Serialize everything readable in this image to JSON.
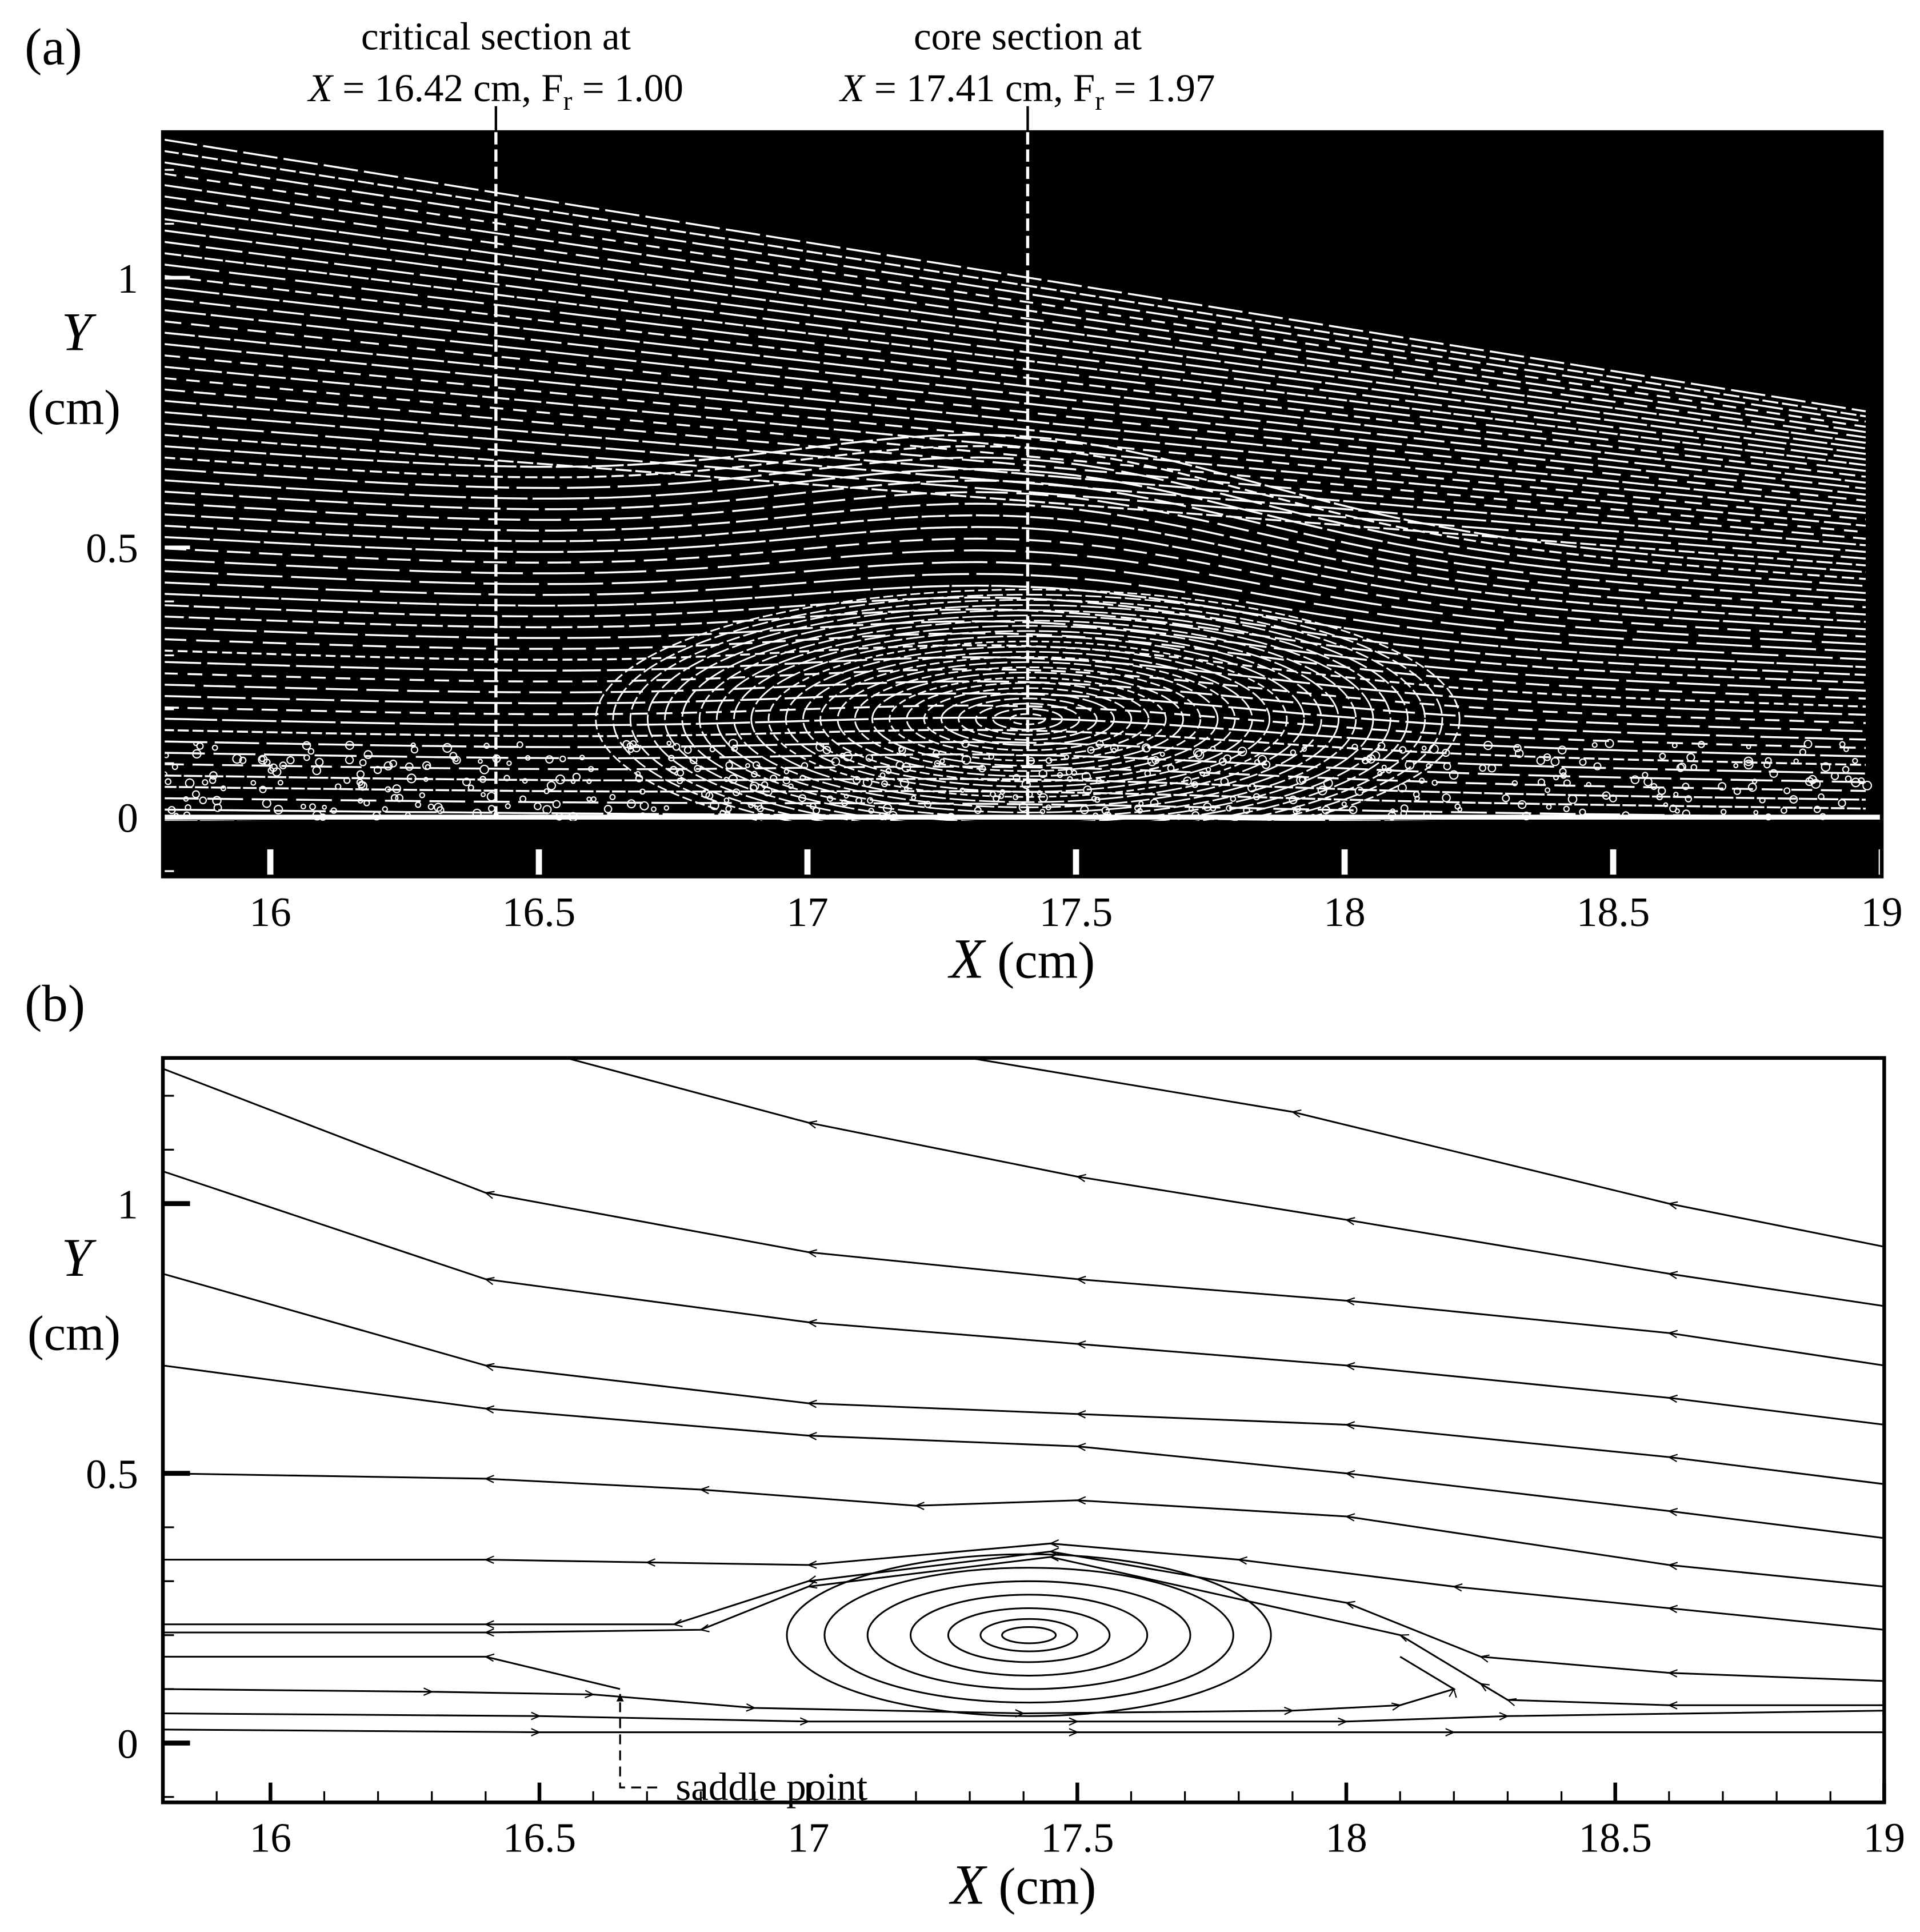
{
  "chart_data": [
    {
      "type": "image",
      "panel_label": "(a)",
      "xlim": [
        15.8,
        19
      ],
      "ylim": [
        -0.11,
        1.27
      ],
      "xticks": [
        16,
        16.5,
        17,
        17.5,
        18,
        18.5,
        19
      ],
      "yticks": [
        0,
        0.5,
        1
      ],
      "xlabel": {
        "var": "X",
        "unit": " (cm)"
      },
      "ylabel": {
        "var": "Y",
        "unit": "(cm)"
      },
      "sections": [
        {
          "title": "critical section at",
          "parts": [
            "X",
            " = 16.42 cm, F",
            "r",
            " = 1.00"
          ],
          "x": 16.42
        },
        {
          "title": "core section at",
          "parts": [
            "X",
            " = 17.41 cm, F",
            "r",
            " = 1.97"
          ],
          "x": 17.41
        }
      ]
    },
    {
      "type": "streamline",
      "panel_label": "(b)",
      "xlim": [
        15.8,
        19
      ],
      "ylim": [
        -0.11,
        1.27
      ],
      "xticks": [
        16,
        16.5,
        17,
        17.5,
        18,
        18.5,
        19
      ],
      "yticks": [
        0,
        0.5,
        1
      ],
      "xlabel": {
        "var": "X",
        "unit": " (cm)"
      },
      "ylabel": {
        "var": "Y",
        "unit": "(cm)"
      },
      "streamlines": [
        {
          "x": [
            19,
            18.6,
            17.9,
            17.3
          ],
          "y": [
            0.92,
            1.0,
            1.17,
            1.27
          ]
        },
        {
          "x": [
            19,
            18.6,
            18,
            17.5,
            17,
            16.55
          ],
          "y": [
            0.81,
            0.87,
            0.97,
            1.05,
            1.15,
            1.27
          ]
        },
        {
          "x": [
            19,
            18.6,
            18,
            17.5,
            17,
            16.4,
            15.8
          ],
          "y": [
            0.7,
            0.76,
            0.82,
            0.86,
            0.91,
            1.02,
            1.25
          ]
        },
        {
          "x": [
            19,
            18.6,
            18,
            17.5,
            17,
            16.4,
            15.8
          ],
          "y": [
            0.59,
            0.64,
            0.7,
            0.74,
            0.78,
            0.86,
            1.06
          ]
        },
        {
          "x": [
            19,
            18.6,
            18,
            17.5,
            17,
            16.4,
            15.8
          ],
          "y": [
            0.48,
            0.53,
            0.59,
            0.61,
            0.63,
            0.7,
            0.87
          ]
        },
        {
          "x": [
            19,
            18.6,
            18,
            17.5,
            17,
            16.4,
            15.8
          ],
          "y": [
            0.38,
            0.43,
            0.5,
            0.55,
            0.57,
            0.62,
            0.7
          ]
        },
        {
          "x": [
            19,
            18.6,
            18,
            17.5,
            17.2,
            16.8,
            16.4,
            15.8
          ],
          "y": [
            0.29,
            0.33,
            0.42,
            0.45,
            0.44,
            0.47,
            0.49,
            0.5
          ]
        },
        {
          "x": [
            19,
            18.6,
            18.2,
            17.8,
            17.45,
            17,
            16.7,
            16.4,
            15.8
          ],
          "y": [
            0.21,
            0.25,
            0.29,
            0.34,
            0.37,
            0.33,
            0.335,
            0.34,
            0.34
          ]
        },
        {
          "x": [
            19,
            18.6,
            18.25,
            18,
            17.45,
            17,
            16.75,
            16.4,
            15.8
          ],
          "y": [
            0.115,
            0.13,
            0.16,
            0.26,
            0.355,
            0.3,
            0.22,
            0.22,
            0.22
          ]
        },
        {
          "x": [
            19,
            18.6,
            18.3,
            18.25,
            18.1,
            17.45,
            17,
            16.8,
            16.4,
            15.8
          ],
          "y": [
            0.07,
            0.07,
            0.08,
            0.11,
            0.2,
            0.345,
            0.29,
            0.21,
            0.205,
            0.205
          ]
        },
        {
          "x": [
            16.65,
            16.4,
            15.8
          ],
          "y": [
            0.1,
            0.16,
            0.16
          ]
        },
        {
          "x": [
            15.8,
            16.3,
            16.6,
            16.9,
            17.4,
            17.9,
            18.1,
            18.2,
            18.1
          ],
          "y": [
            0.1,
            0.095,
            0.09,
            0.065,
            0.055,
            0.06,
            0.07,
            0.1,
            0.16
          ]
        },
        {
          "x": [
            15.8,
            16.5,
            17,
            17.5,
            18,
            18.3,
            19
          ],
          "y": [
            0.055,
            0.05,
            0.04,
            0.04,
            0.04,
            0.05,
            0.06
          ]
        },
        {
          "x": [
            15.8,
            16.5,
            17.5,
            18.2,
            19
          ],
          "y": [
            0.025,
            0.02,
            0.02,
            0.02,
            0.02
          ]
        }
      ],
      "vortex": {
        "x": 17.41,
        "y": 0.2,
        "rx": [
          0.45,
          0.38,
          0.3,
          0.22,
          0.15,
          0.09,
          0.05
        ],
        "ry": [
          0.15,
          0.125,
          0.1,
          0.075,
          0.05,
          0.03,
          0.015
        ]
      },
      "saddle_point": {
        "label": "saddle point",
        "x": 16.65,
        "y": 0.1
      }
    }
  ]
}
